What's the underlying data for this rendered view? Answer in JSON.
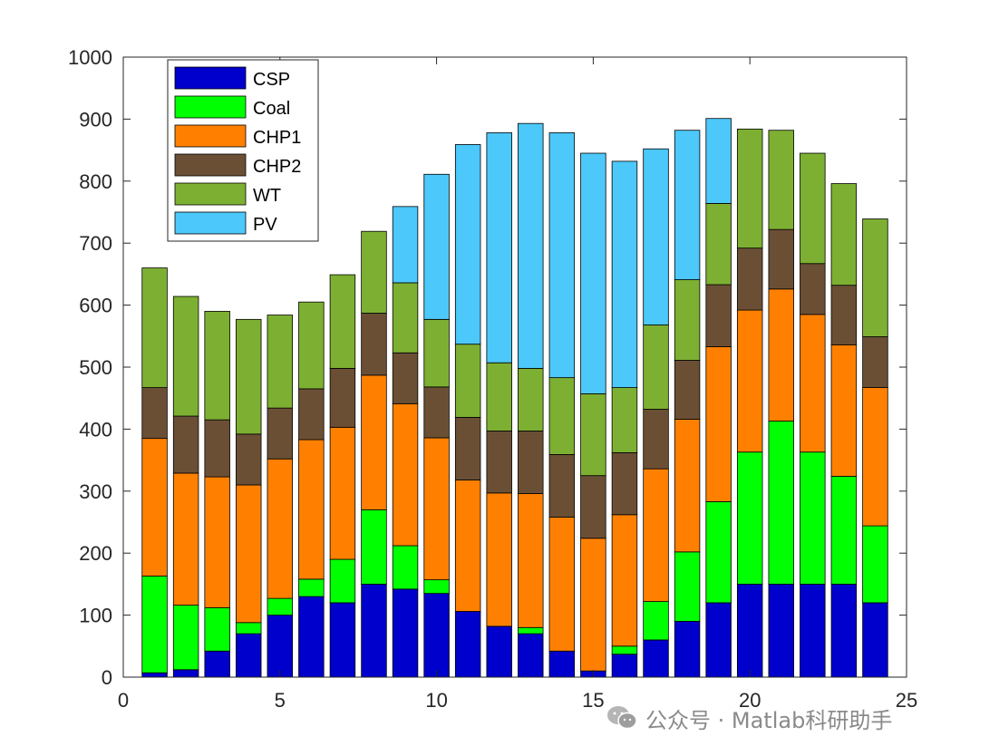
{
  "chart_data": {
    "type": "bar",
    "stacked": true,
    "x": [
      1,
      2,
      3,
      4,
      5,
      6,
      7,
      8,
      9,
      10,
      11,
      12,
      13,
      14,
      15,
      16,
      17,
      18,
      19,
      20,
      21,
      22,
      23,
      24
    ],
    "xlim": [
      0,
      25
    ],
    "ylim": [
      0,
      1000
    ],
    "xticks": [
      0,
      5,
      10,
      15,
      20,
      25
    ],
    "yticks": [
      0,
      100,
      200,
      300,
      400,
      500,
      600,
      700,
      800,
      900,
      1000
    ],
    "title": "",
    "xlabel": "",
    "ylabel": "",
    "grid": false,
    "legend_position": "top-left",
    "series": [
      {
        "name": "CSP",
        "color": "#0000CC",
        "values": [
          7,
          12,
          42,
          70,
          100,
          130,
          120,
          150,
          142,
          135,
          106,
          82,
          70,
          42,
          10,
          37,
          60,
          90,
          120,
          150,
          150,
          150,
          150,
          120
        ]
      },
      {
        "name": "Coal",
        "color": "#00FF00",
        "values": [
          156,
          104,
          70,
          18,
          27,
          28,
          70,
          120,
          70,
          22,
          0,
          0,
          10,
          0,
          0,
          13,
          62,
          112,
          163,
          213,
          263,
          213,
          174,
          124
        ]
      },
      {
        "name": "CHP1",
        "color": "#FF8000",
        "values": [
          222,
          213,
          211,
          222,
          225,
          225,
          213,
          217,
          229,
          229,
          212,
          215,
          216,
          216,
          214,
          212,
          214,
          214,
          250,
          229,
          213,
          222,
          212,
          223
        ]
      },
      {
        "name": "CHP2",
        "color": "#6B4F35",
        "values": [
          82,
          92,
          92,
          82,
          82,
          82,
          95,
          100,
          82,
          82,
          101,
          100,
          101,
          101,
          101,
          100,
          96,
          95,
          100,
          100,
          96,
          82,
          96,
          82
        ]
      },
      {
        "name": "WT",
        "color": "#7DB032",
        "values": [
          193,
          193,
          175,
          185,
          150,
          140,
          151,
          132,
          113,
          109,
          118,
          110,
          101,
          124,
          132,
          105,
          136,
          130,
          131,
          192,
          160,
          178,
          164,
          190
        ]
      },
      {
        "name": "PV",
        "color": "#4DC8FA",
        "values": [
          0,
          0,
          0,
          0,
          0,
          0,
          0,
          0,
          123,
          234,
          322,
          371,
          395,
          395,
          388,
          365,
          284,
          241,
          137,
          0,
          0,
          0,
          0,
          0
        ]
      }
    ]
  },
  "watermark": {
    "icon": "wechat-icon",
    "text": "公众号 · Matlab科研助手"
  }
}
